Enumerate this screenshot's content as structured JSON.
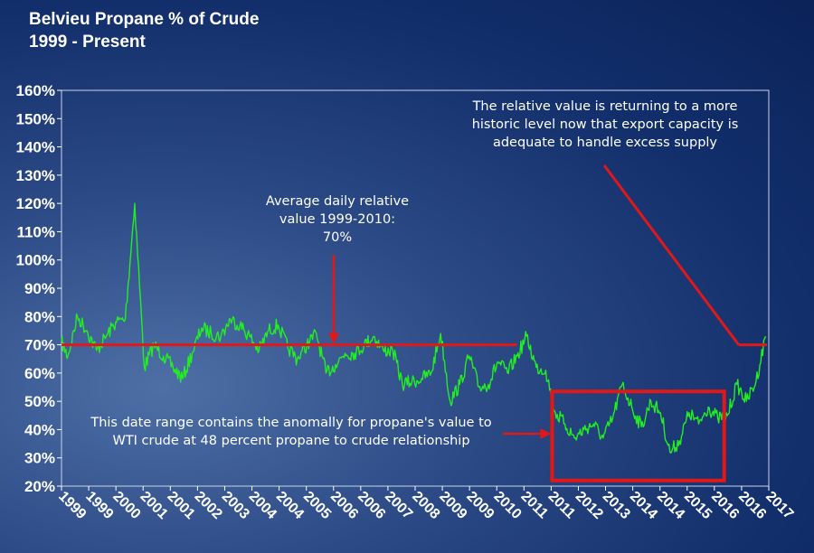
{
  "chart_data": {
    "type": "line",
    "title": "Belvieu Propane % of Crude",
    "subtitle": "1999 - Present",
    "xlabel": "",
    "ylabel": "",
    "ylim": [
      0.2,
      1.6
    ],
    "yticks": [
      "160%",
      "150%",
      "140%",
      "130%",
      "120%",
      "110%",
      "100%",
      "90%",
      "80%",
      "70%",
      "60%",
      "50%",
      "40%",
      "30%",
      "20%"
    ],
    "ytick_values": [
      1.6,
      1.5,
      1.4,
      1.3,
      1.2,
      1.1,
      1.0,
      0.9,
      0.8,
      0.7,
      0.6,
      0.5,
      0.4,
      0.3,
      0.2
    ],
    "xlim": [
      "1999-01-01",
      "2017-07-01"
    ],
    "xticks": [
      "1999",
      "1999",
      "2000",
      "2001",
      "2001",
      "2002",
      "2003",
      "2004",
      "2004",
      "2005",
      "2006",
      "2006",
      "2007",
      "2008",
      "2009",
      "2009",
      "2010",
      "2011",
      "2011",
      "2012",
      "2013",
      "2014",
      "2014",
      "2015",
      "2016",
      "2016",
      "2017"
    ],
    "grid": false,
    "colors": {
      "series": "#22ee22",
      "average_line": "#e01818",
      "highlight_box": "#e01818",
      "text": "#ffffff"
    },
    "series": [
      {
        "x": [
          "1999-01-01",
          "1999-03-01",
          "1999-06-01",
          "1999-09-01",
          "1999-12-01",
          "2000-03-01",
          "2000-06-01",
          "2000-09-01",
          "2000-12-01",
          "2001-03-01",
          "2001-06-01",
          "2001-09-01",
          "2001-12-01",
          "2002-03-01",
          "2002-06-01",
          "2002-09-01",
          "2002-12-01",
          "2003-03-01",
          "2003-06-01",
          "2003-09-01",
          "2003-12-01",
          "2004-03-01",
          "2004-06-01",
          "2004-09-01",
          "2004-12-01",
          "2005-03-01",
          "2005-06-01",
          "2005-09-01",
          "2005-12-01",
          "2006-03-01",
          "2006-06-01",
          "2006-09-01",
          "2006-12-01",
          "2007-03-01",
          "2007-06-01",
          "2007-09-01",
          "2007-12-01",
          "2008-03-01",
          "2008-06-01",
          "2008-09-01",
          "2008-12-01",
          "2009-03-01",
          "2009-06-01",
          "2009-09-01",
          "2009-12-01",
          "2010-03-01",
          "2010-06-01",
          "2010-09-01",
          "2010-12-01",
          "2011-03-01",
          "2011-06-01",
          "2011-09-01",
          "2011-12-01",
          "2012-03-01",
          "2012-06-01",
          "2012-09-01",
          "2012-12-01",
          "2013-03-01",
          "2013-06-01",
          "2013-09-01",
          "2013-12-01",
          "2014-03-01",
          "2014-06-01",
          "2014-09-01",
          "2014-12-01",
          "2015-03-01",
          "2015-06-01",
          "2015-09-01",
          "2015-12-01",
          "2016-03-01",
          "2016-06-01",
          "2016-09-01",
          "2016-12-01",
          "2017-03-01",
          "2017-06-01"
        ],
        "values": [
          0.71,
          0.66,
          0.8,
          0.75,
          0.68,
          0.73,
          0.78,
          0.79,
          1.2,
          0.62,
          0.7,
          0.66,
          0.62,
          0.58,
          0.67,
          0.76,
          0.74,
          0.73,
          0.79,
          0.77,
          0.73,
          0.68,
          0.75,
          0.77,
          0.69,
          0.65,
          0.7,
          0.74,
          0.6,
          0.63,
          0.67,
          0.67,
          0.7,
          0.73,
          0.68,
          0.68,
          0.56,
          0.57,
          0.58,
          0.6,
          0.74,
          0.5,
          0.56,
          0.66,
          0.55,
          0.56,
          0.64,
          0.6,
          0.66,
          0.73,
          0.62,
          0.61,
          0.46,
          0.42,
          0.37,
          0.4,
          0.42,
          0.37,
          0.44,
          0.56,
          0.48,
          0.41,
          0.5,
          0.46,
          0.32,
          0.36,
          0.46,
          0.42,
          0.48,
          0.44,
          0.45,
          0.56,
          0.5,
          0.57,
          0.73
        ]
      }
    ],
    "average": {
      "value": 0.7,
      "x_start": "1999-01-01",
      "x_end": "2010-12-01"
    },
    "highlight_range": {
      "x_start": "2011-11-01",
      "x_end": "2016-05-01",
      "y_min": 0.22,
      "y_max": 0.535
    },
    "annotations": {
      "average": [
        "Average daily relative",
        "value 1999-2010:",
        "70%"
      ],
      "anomaly": [
        "This date range contains the anomally for propane's value to",
        "WTI crude at 48 percent propane to crude relationship"
      ],
      "return": [
        "The relative value is returning to a more",
        "historic level now that export capacity is",
        "adequate to handle excess supply"
      ]
    }
  }
}
